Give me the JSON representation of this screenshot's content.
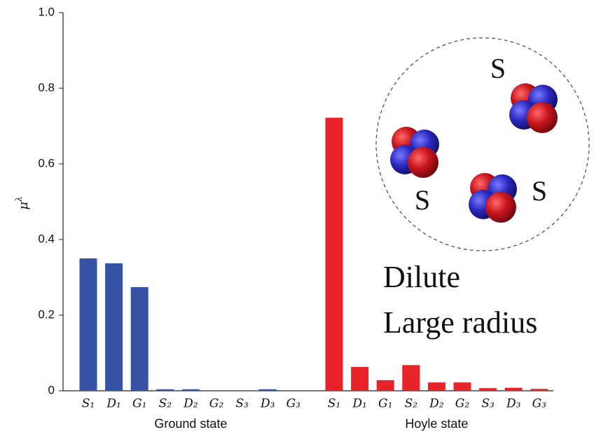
{
  "chart_data": {
    "type": "bar",
    "ylabel": "μ^λ",
    "ylim": [
      0,
      1
    ],
    "yticks": [
      0,
      0.2,
      0.4,
      0.6,
      0.8,
      {
        "value": 1,
        "label": "1.0"
      }
    ],
    "groups": [
      {
        "name": "Ground state",
        "color": "#3652a5",
        "categories": [
          "S₁",
          "D₁",
          "G₁",
          "S₂",
          "D₂",
          "G₂",
          "S₃",
          "D₃",
          "G₃"
        ],
        "values": [
          0.35,
          0.337,
          0.274,
          0.004,
          0.004,
          0,
          0,
          0.004,
          0
        ]
      },
      {
        "name": "Hoyle state",
        "color": "#e8232a",
        "categories": [
          "S₁",
          "D₁",
          "G₁",
          "S₂",
          "D₂",
          "G₂",
          "S₃",
          "D₃",
          "G₃"
        ],
        "values": [
          0.722,
          0.063,
          0.028,
          0.068,
          0.022,
          0.022,
          0.007,
          0.008,
          0.005
        ]
      }
    ],
    "inset_labels": [
      "S",
      "S",
      "S"
    ],
    "annotation_lines": [
      "Dilute",
      "Large radius"
    ]
  }
}
